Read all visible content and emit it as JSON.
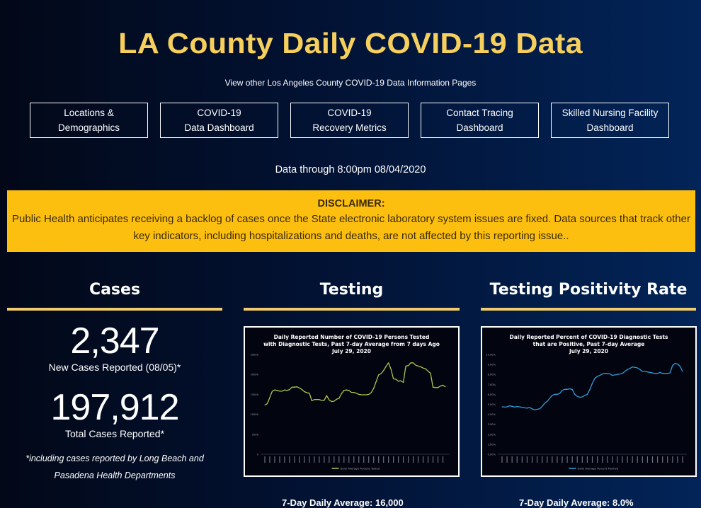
{
  "header": {
    "title": "LA County Daily COVID-19 Data",
    "subtitle": "View other Los Angeles County COVID-19 Data Information Pages"
  },
  "nav": [
    {
      "label": "Locations &\nDemographics"
    },
    {
      "label": "COVID-19\nData Dashboard"
    },
    {
      "label": "COVID-19\nRecovery Metrics"
    },
    {
      "label": "Contact Tracing\nDashboard"
    },
    {
      "label": "Skilled Nursing Facility\nDashboard"
    }
  ],
  "data_through": "Data through 8:00pm 08/04/2020",
  "disclaimer": {
    "heading": "DISCLAIMER:",
    "body": "Public Health anticipates receiving a backlog of cases once the State electronic laboratory system issues are fixed. Data sources that track other key indicators, including hospitalizations and deaths, are not affected by this reporting issue..",
    "bg_color": "#fcbf10"
  },
  "colors": {
    "title": "#f7cf5c",
    "rule": "#f2cc6c",
    "testing_line": "#a9c94a",
    "positivity_line": "#2e9fdc"
  },
  "cases": {
    "title": "Cases",
    "new_cases": "2,347",
    "new_cases_label": "New Cases Reported (08/05)*",
    "total_cases": "197,912",
    "total_cases_label": "Total Cases Reported*",
    "footnote": "*including cases reported by Long Beach and Pasadena Health Departments"
  },
  "testing": {
    "title": "Testing",
    "bottom_text": "7-Day Daily Average: 16,000"
  },
  "positivity": {
    "title": "Testing Positivity Rate",
    "bottom_text": "7-Day Daily Average: 8.0%"
  },
  "chart_data": [
    {
      "type": "line",
      "title": "Daily Reported Number of COVID-19 Persons Tested with Diagnostic Tests, Past 7-day Average from 7 days Ago",
      "subtitle": "July 29, 2020",
      "xlabel": "",
      "ylabel": "",
      "ylim": [
        0,
        25000
      ],
      "yticks": [
        "0",
        "5000",
        "10000",
        "15000",
        "20000",
        "25000"
      ],
      "legend": "Daily Average Persons Tested",
      "legend_position": "bottom",
      "grid": false,
      "series": [
        {
          "name": "Daily Average Persons Tested",
          "values": [
            12300,
            12700,
            14200,
            15800,
            16100,
            16000,
            15800,
            15800,
            16100,
            16000,
            16200,
            16800,
            16800,
            16900,
            16600,
            16200,
            15700,
            15400,
            15300,
            13400,
            13700,
            13700,
            13700,
            13500,
            13500,
            14700,
            13600,
            13200,
            13300,
            13800,
            14000,
            15200,
            16000,
            16100,
            16000,
            15500,
            15500,
            15300,
            15000,
            14900,
            14900,
            14900,
            15000,
            15400,
            16500,
            18200,
            19900,
            20200,
            21000,
            22000,
            22900,
            21300,
            18900,
            18800,
            18300,
            18400,
            18000,
            22100,
            22200,
            22900,
            22900,
            22300,
            22100,
            21900,
            21600,
            21400,
            20800,
            20300,
            16800,
            16700,
            16700,
            17100,
            17300,
            16900
          ]
        }
      ]
    },
    {
      "type": "line",
      "title": "Daily Reported Percent of COVID-19 Diagnostic Tests that are Positive, Past 7-day Average",
      "subtitle": "July 29, 2020",
      "xlabel": "",
      "ylabel": "",
      "ylim": [
        0,
        10
      ],
      "yticks": [
        "0.00%",
        "1.00%",
        "2.00%",
        "3.00%",
        "4.00%",
        "5.00%",
        "6.00%",
        "7.00%",
        "8.00%",
        "9.00%",
        "10.00%"
      ],
      "legend": "Daily Average Percent Positive",
      "legend_position": "bottom",
      "grid": false,
      "series": [
        {
          "name": "Daily Average Percent Positive",
          "values": [
            4.75,
            4.72,
            4.75,
            4.85,
            4.8,
            4.72,
            4.78,
            4.75,
            4.7,
            4.65,
            4.62,
            4.68,
            4.55,
            4.45,
            4.5,
            4.55,
            4.8,
            5.1,
            5.3,
            5.6,
            5.9,
            6.0,
            6.0,
            6.1,
            6.4,
            6.5,
            6.5,
            6.55,
            6.5,
            6.0,
            5.8,
            5.7,
            5.75,
            5.9,
            6.0,
            6.5,
            7.1,
            7.6,
            7.8,
            7.9,
            8.05,
            8.1,
            8.1,
            8.05,
            7.9,
            7.95,
            8.0,
            8.05,
            8.1,
            8.3,
            8.5,
            8.6,
            8.75,
            8.7,
            8.65,
            8.5,
            8.3,
            8.3,
            8.25,
            8.2,
            8.15,
            8.1,
            8.1,
            8.2,
            8.1,
            8.1,
            8.1,
            8.15,
            8.9,
            9.1,
            9.05,
            8.8,
            8.3
          ]
        }
      ]
    }
  ]
}
